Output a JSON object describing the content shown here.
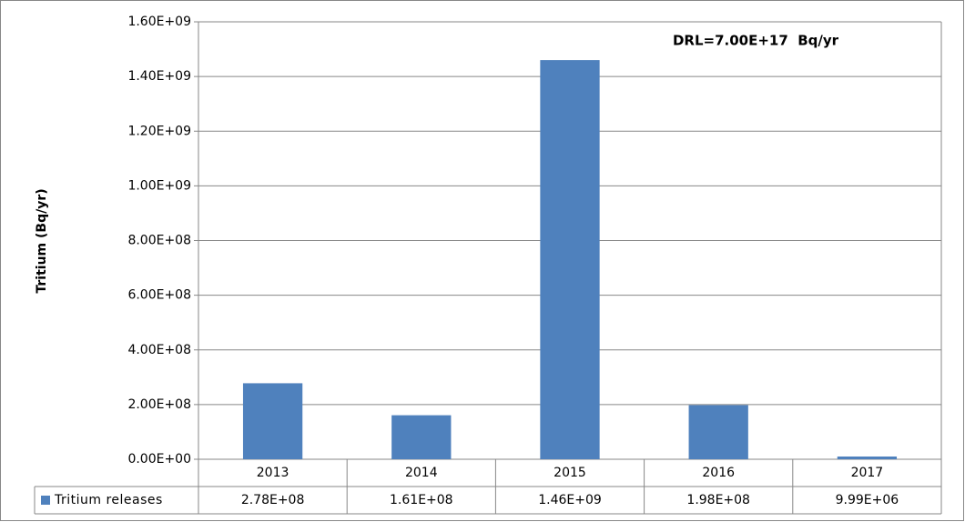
{
  "chart_data": {
    "type": "bar",
    "y_label": "Tritium (Bq/yr)",
    "annotation": "DRL=7.00E+17  Bq/yr",
    "categories": [
      "2013",
      "2014",
      "2015",
      "2016",
      "2017"
    ],
    "series": [
      {
        "name": "Tritium releases",
        "color": "#4f81bd",
        "values": [
          278000000,
          161000000,
          1460000000,
          198000000,
          9990000
        ],
        "value_labels": [
          "2.78E+08",
          "1.61E+08",
          "1.46E+09",
          "1.98E+08",
          "9.99E+06"
        ]
      }
    ],
    "ylim": [
      0,
      1600000000
    ],
    "yticks": [
      {
        "value": 0,
        "label": "0.00E+00"
      },
      {
        "value": 200000000,
        "label": "2.00E+08"
      },
      {
        "value": 400000000,
        "label": "4.00E+08"
      },
      {
        "value": 600000000,
        "label": "6.00E+08"
      },
      {
        "value": 800000000,
        "label": "8.00E+08"
      },
      {
        "value": 1000000000,
        "label": "1.00E+09"
      },
      {
        "value": 1200000000,
        "label": "1.20E+09"
      },
      {
        "value": 1400000000,
        "label": "1.40E+09"
      },
      {
        "value": 1600000000,
        "label": "1.60E+09"
      }
    ],
    "grid": true
  }
}
